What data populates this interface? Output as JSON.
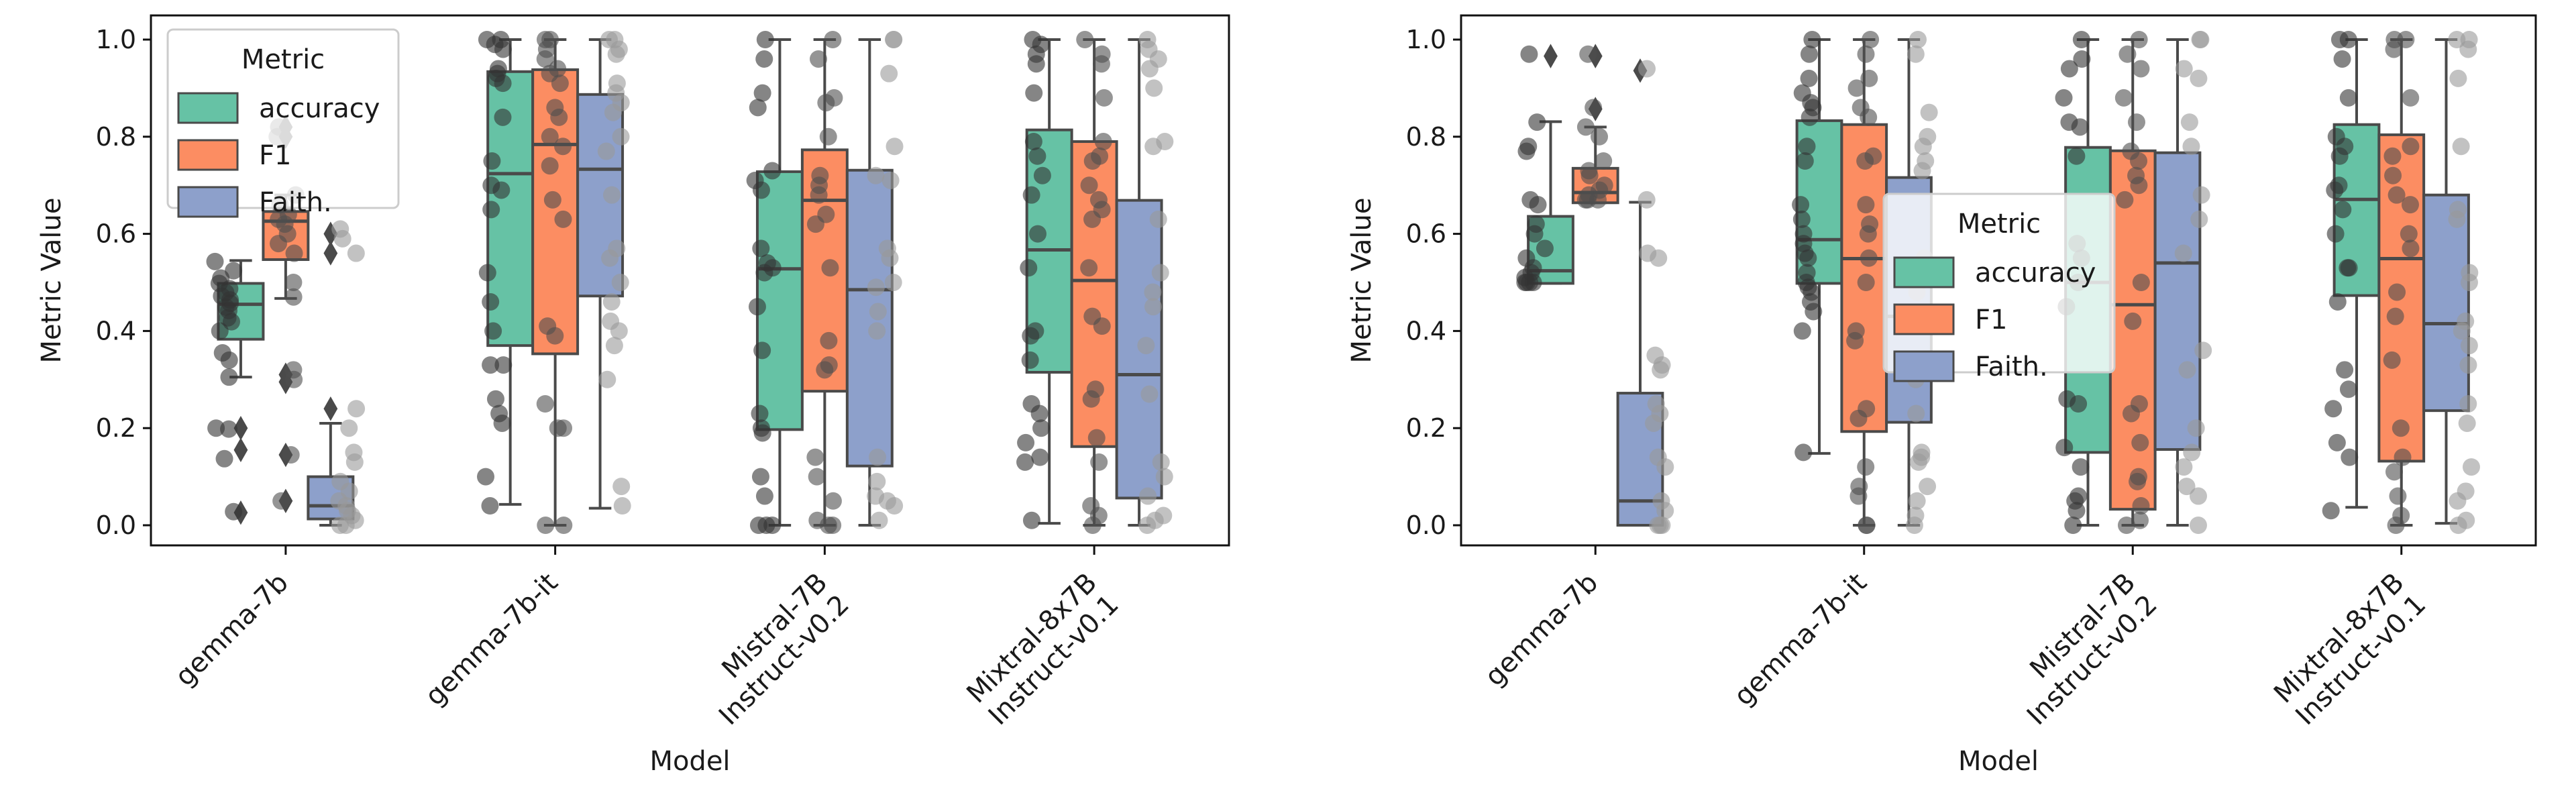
{
  "chart_data": [
    {
      "type": "box",
      "xlabel": "Model",
      "ylabel": "Metric Value",
      "ylim": [
        -0.05,
        1.05
      ],
      "yticks": [
        "0.0",
        "0.2",
        "0.4",
        "0.6",
        "0.8",
        "1.0"
      ],
      "categories": [
        [
          "gemma-7b"
        ],
        [
          "gemma-7b-it"
        ],
        [
          "Mistral-7B",
          "Instruct-v0.2"
        ],
        [
          "Mixtral-8x7B",
          "Instruct-v0.1"
        ]
      ],
      "legend": {
        "title": "Metric",
        "placement": "upper-left",
        "entries": [
          "accuracy",
          "F1",
          "Faith."
        ]
      },
      "colors": [
        "#66c2a5",
        "#fc8d62",
        "#8da0cb"
      ],
      "grid": false,
      "series": [
        {
          "name": "accuracy",
          "boxes": [
            {
              "whislo": 0.305,
              "q1": 0.383,
              "med": 0.455,
              "q3": 0.498,
              "whishi": 0.545,
              "fliers": [
                0.2,
                0.155,
                0.026
              ],
              "points": [
                0.543,
                0.524,
                0.509,
                0.498,
                0.487,
                0.479,
                0.472,
                0.464,
                0.457,
                0.449,
                0.442,
                0.427,
                0.419,
                0.4,
                0.355,
                0.34,
                0.305,
                0.2,
                0.198,
                0.137,
                0.028
              ]
            },
            {
              "whislo": 0.043,
              "q1": 0.37,
              "med": 0.724,
              "q3": 0.934,
              "whishi": 1.0,
              "fliers": [],
              "points": [
                1.0,
                1.0,
                0.99,
                0.98,
                0.94,
                0.93,
                0.92,
                0.91,
                0.84,
                0.75,
                0.7,
                0.69,
                0.65,
                0.52,
                0.46,
                0.4,
                0.33,
                0.33,
                0.26,
                0.23,
                0.21,
                0.1,
                0.04
              ]
            },
            {
              "whislo": 0.0,
              "q1": 0.197,
              "med": 0.528,
              "q3": 0.728,
              "whishi": 1.0,
              "fliers": [],
              "points": [
                1.0,
                0.96,
                0.89,
                0.86,
                0.73,
                0.71,
                0.69,
                0.57,
                0.54,
                0.53,
                0.52,
                0.45,
                0.36,
                0.23,
                0.2,
                0.19,
                0.1,
                0.06,
                0.0,
                0.0,
                0.0
              ]
            },
            {
              "whislo": 0.004,
              "q1": 0.315,
              "med": 0.567,
              "q3": 0.814,
              "whishi": 1.0,
              "fliers": [],
              "points": [
                1.0,
                0.99,
                0.97,
                0.95,
                0.89,
                0.79,
                0.76,
                0.72,
                0.68,
                0.6,
                0.53,
                0.4,
                0.39,
                0.34,
                0.25,
                0.23,
                0.2,
                0.17,
                0.14,
                0.13,
                0.01
              ]
            }
          ]
        },
        {
          "name": "F1",
          "boxes": [
            {
              "whislo": 0.467,
              "q1": 0.547,
              "med": 0.626,
              "q3": 0.646,
              "whishi": 0.68,
              "fliers": [
                0.82,
                0.8,
                0.31,
                0.295,
                0.145,
                0.05
              ],
              "points": [
                0.82,
                0.8,
                0.68,
                0.66,
                0.64,
                0.63,
                0.62,
                0.6,
                0.58,
                0.56,
                0.5,
                0.47,
                0.32,
                0.3,
                0.145,
                0.05
              ]
            },
            {
              "whislo": 0.0,
              "q1": 0.353,
              "med": 0.784,
              "q3": 0.938,
              "whishi": 1.0,
              "fliers": [],
              "points": [
                1.0,
                1.0,
                0.98,
                0.96,
                0.94,
                0.93,
                0.91,
                0.86,
                0.84,
                0.8,
                0.78,
                0.74,
                0.67,
                0.63,
                0.41,
                0.39,
                0.25,
                0.2,
                0.2,
                0.0,
                0.0
              ]
            },
            {
              "whislo": 0.0,
              "q1": 0.276,
              "med": 0.669,
              "q3": 0.773,
              "whishi": 1.0,
              "fliers": [],
              "points": [
                1.0,
                0.96,
                0.88,
                0.87,
                0.8,
                0.72,
                0.7,
                0.68,
                0.64,
                0.62,
                0.53,
                0.38,
                0.33,
                0.32,
                0.14,
                0.1,
                0.05,
                0.01,
                0.0,
                0.0
              ]
            },
            {
              "whislo": 0.0,
              "q1": 0.162,
              "med": 0.504,
              "q3": 0.79,
              "whishi": 1.0,
              "fliers": [],
              "points": [
                1.0,
                0.97,
                0.95,
                0.88,
                0.79,
                0.76,
                0.75,
                0.7,
                0.67,
                0.65,
                0.63,
                0.53,
                0.43,
                0.41,
                0.28,
                0.26,
                0.18,
                0.13,
                0.04,
                0.02,
                0.0
              ]
            }
          ]
        },
        {
          "name": "Faith.",
          "boxes": [
            {
              "whislo": 0.0,
              "q1": 0.013,
              "med": 0.04,
              "q3": 0.1,
              "whishi": 0.21,
              "fliers": [
                0.6,
                0.56,
                0.24
              ],
              "points": [
                0.61,
                0.59,
                0.56,
                0.24,
                0.2,
                0.15,
                0.13,
                0.09,
                0.07,
                0.05,
                0.04,
                0.03,
                0.02,
                0.01,
                0.0,
                0.0
              ]
            },
            {
              "whislo": 0.035,
              "q1": 0.472,
              "med": 0.733,
              "q3": 0.887,
              "whishi": 1.0,
              "fliers": [],
              "points": [
                1.0,
                1.0,
                0.98,
                0.97,
                0.91,
                0.89,
                0.87,
                0.85,
                0.8,
                0.77,
                0.68,
                0.57,
                0.55,
                0.5,
                0.46,
                0.42,
                0.4,
                0.37,
                0.3,
                0.08,
                0.04
              ]
            },
            {
              "whislo": 0.0,
              "q1": 0.122,
              "med": 0.485,
              "q3": 0.731,
              "whishi": 1.0,
              "fliers": [],
              "points": [
                1.0,
                1.0,
                0.93,
                0.78,
                0.72,
                0.71,
                0.57,
                0.55,
                0.5,
                0.49,
                0.44,
                0.4,
                0.14,
                0.09,
                0.06,
                0.05,
                0.04,
                0.01
              ]
            },
            {
              "whislo": 0.0,
              "q1": 0.056,
              "med": 0.31,
              "q3": 0.669,
              "whishi": 1.0,
              "fliers": [],
              "points": [
                1.0,
                0.98,
                0.96,
                0.94,
                0.9,
                0.79,
                0.78,
                0.63,
                0.52,
                0.48,
                0.45,
                0.37,
                0.27,
                0.13,
                0.1,
                0.06,
                0.02,
                0.01,
                0.0
              ]
            }
          ]
        }
      ]
    },
    {
      "type": "box",
      "xlabel": "Model",
      "ylabel": "Metric Value",
      "ylim": [
        -0.05,
        1.05
      ],
      "yticks": [
        "0.0",
        "0.2",
        "0.4",
        "0.6",
        "0.8",
        "1.0"
      ],
      "categories": [
        [
          "gemma-7b"
        ],
        [
          "gemma-7b-it"
        ],
        [
          "Mistral-7B",
          "Instruct-v0.2"
        ],
        [
          "Mixtral-8x7B",
          "Instruct-v0.1"
        ]
      ],
      "legend": {
        "title": "Metric",
        "placement": "center",
        "entries": [
          "accuracy",
          "F1",
          "Faith."
        ]
      },
      "colors": [
        "#66c2a5",
        "#fc8d62",
        "#8da0cb"
      ],
      "grid": false,
      "series": [
        {
          "name": "accuracy",
          "boxes": [
            {
              "whislo": 0.498,
              "q1": 0.498,
              "med": 0.524,
              "q3": 0.636,
              "whishi": 0.831,
              "fliers": [
                0.966
              ],
              "points": [
                0.97,
                0.83,
                0.78,
                0.77,
                0.67,
                0.66,
                0.62,
                0.6,
                0.57,
                0.55,
                0.53,
                0.52,
                0.51,
                0.5,
                0.5,
                0.5,
                0.5
              ]
            },
            {
              "whislo": 0.148,
              "q1": 0.498,
              "med": 0.588,
              "q3": 0.833,
              "whishi": 1.0,
              "fliers": [],
              "points": [
                1.0,
                0.97,
                0.92,
                0.89,
                0.87,
                0.86,
                0.84,
                0.78,
                0.75,
                0.66,
                0.63,
                0.6,
                0.58,
                0.56,
                0.55,
                0.52,
                0.5,
                0.49,
                0.48,
                0.46,
                0.44,
                0.4,
                0.15
              ]
            },
            {
              "whislo": 0.0,
              "q1": 0.15,
              "med": 0.5,
              "q3": 0.778,
              "whishi": 1.0,
              "fliers": [],
              "points": [
                1.0,
                0.96,
                0.94,
                0.88,
                0.83,
                0.82,
                0.76,
                0.58,
                0.55,
                0.5,
                0.45,
                0.26,
                0.25,
                0.16,
                0.12,
                0.06,
                0.05,
                0.03,
                0.0
              ]
            },
            {
              "whislo": 0.037,
              "q1": 0.473,
              "med": 0.671,
              "q3": 0.825,
              "whishi": 1.0,
              "fliers": [],
              "points": [
                1.0,
                1.0,
                0.96,
                0.88,
                0.8,
                0.78,
                0.76,
                0.7,
                0.69,
                0.65,
                0.6,
                0.53,
                0.53,
                0.46,
                0.32,
                0.28,
                0.24,
                0.17,
                0.14,
                0.03
              ]
            }
          ]
        },
        {
          "name": "F1",
          "boxes": [
            {
              "whislo": 0.664,
              "q1": 0.664,
              "med": 0.685,
              "q3": 0.735,
              "whishi": 0.82,
              "fliers": [
                0.966,
                0.857
              ],
              "points": [
                0.97,
                0.86,
                0.82,
                0.8,
                0.75,
                0.73,
                0.72,
                0.7,
                0.69,
                0.68,
                0.67,
                0.67,
                0.67
              ]
            },
            {
              "whislo": 0.0,
              "q1": 0.193,
              "med": 0.549,
              "q3": 0.825,
              "whishi": 1.0,
              "fliers": [],
              "points": [
                1.0,
                0.97,
                0.92,
                0.9,
                0.86,
                0.84,
                0.76,
                0.75,
                0.66,
                0.62,
                0.6,
                0.55,
                0.5,
                0.4,
                0.38,
                0.24,
                0.22,
                0.12,
                0.08,
                0.06,
                0.0,
                0.0
              ]
            },
            {
              "whislo": 0.0,
              "q1": 0.033,
              "med": 0.454,
              "q3": 0.771,
              "whishi": 1.0,
              "fliers": [],
              "points": [
                1.0,
                0.97,
                0.94,
                0.88,
                0.83,
                0.77,
                0.75,
                0.72,
                0.7,
                0.67,
                0.5,
                0.42,
                0.25,
                0.23,
                0.17,
                0.1,
                0.09,
                0.04,
                0.01,
                0.0
              ]
            },
            {
              "whislo": 0.0,
              "q1": 0.132,
              "med": 0.549,
              "q3": 0.804,
              "whishi": 1.0,
              "fliers": [],
              "points": [
                1.0,
                1.0,
                0.98,
                0.88,
                0.78,
                0.76,
                0.72,
                0.68,
                0.66,
                0.6,
                0.57,
                0.48,
                0.43,
                0.34,
                0.2,
                0.14,
                0.11,
                0.06,
                0.02,
                0.0
              ]
            }
          ]
        },
        {
          "name": "Faith.",
          "boxes": [
            {
              "whislo": 0.0,
              "q1": 0.0,
              "med": 0.05,
              "q3": 0.272,
              "whishi": 0.665,
              "fliers": [
                0.936
              ],
              "points": [
                0.94,
                0.67,
                0.56,
                0.55,
                0.35,
                0.33,
                0.32,
                0.25,
                0.23,
                0.21,
                0.14,
                0.12,
                0.05,
                0.03,
                0.0,
                0.0,
                0.0
              ]
            },
            {
              "whislo": 0.0,
              "q1": 0.212,
              "med": 0.43,
              "q3": 0.716,
              "whishi": 1.0,
              "fliers": [],
              "points": [
                1.0,
                0.97,
                0.85,
                0.8,
                0.78,
                0.75,
                0.73,
                0.55,
                0.48,
                0.3,
                0.23,
                0.15,
                0.14,
                0.13,
                0.08,
                0.05,
                0.02,
                0.0
              ]
            },
            {
              "whislo": 0.0,
              "q1": 0.156,
              "med": 0.54,
              "q3": 0.767,
              "whishi": 1.0,
              "fliers": [],
              "points": [
                1.0,
                1.0,
                0.94,
                0.92,
                0.83,
                0.78,
                0.68,
                0.63,
                0.56,
                0.36,
                0.32,
                0.2,
                0.15,
                0.12,
                0.08,
                0.06,
                0.0
              ]
            },
            {
              "whislo": 0.004,
              "q1": 0.236,
              "med": 0.415,
              "q3": 0.68,
              "whishi": 1.0,
              "fliers": [],
              "points": [
                1.0,
                1.0,
                0.98,
                0.92,
                0.78,
                0.65,
                0.63,
                0.52,
                0.5,
                0.42,
                0.4,
                0.37,
                0.33,
                0.25,
                0.21,
                0.12,
                0.07,
                0.05,
                0.01,
                0.0
              ]
            }
          ]
        }
      ]
    }
  ]
}
